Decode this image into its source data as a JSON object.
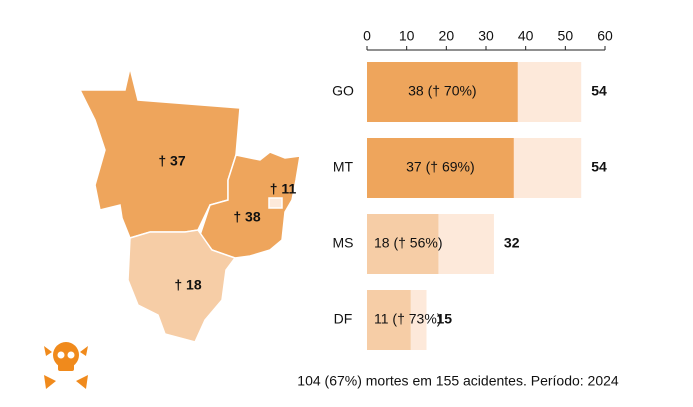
{
  "chart_data": {
    "type": "bar",
    "categories": [
      "GO",
      "MT",
      "MS",
      "DF"
    ],
    "series": [
      {
        "colors": [
          "#eea55c",
          "#eea55c",
          "#f6cda6",
          "#f6cda6"
        ],
        "values": [
          38,
          37,
          18,
          11
        ],
        "value_labels": [
          "38 († 70%)",
          "37 († 69%)",
          "18 († 56%)",
          "11 († 73%)"
        ]
      },
      {
        "color": "#fde9da",
        "values": [
          54,
          54,
          32,
          15
        ]
      }
    ],
    "xlim": [
      0,
      60
    ],
    "xticks": [
      0,
      10,
      20,
      30,
      40,
      50,
      60
    ],
    "footer": "104 (67%) mortes em 155 acidentes. Período: 2024"
  },
  "map": {
    "labels": [
      "† 37",
      "† 38",
      "† 11",
      "† 18"
    ]
  }
}
